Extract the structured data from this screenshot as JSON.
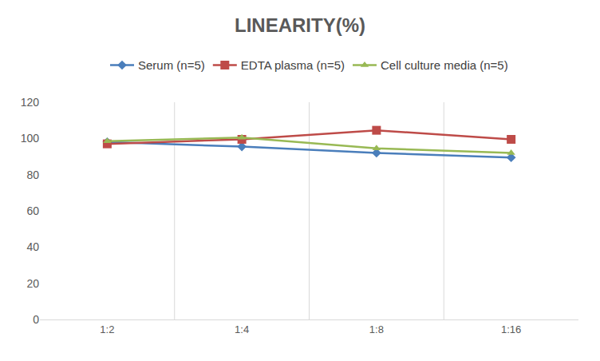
{
  "chart_data": {
    "type": "line",
    "title": "LINEARITY(%)",
    "categories": [
      "1:2",
      "1:4",
      "1:8",
      "1:16"
    ],
    "series": [
      {
        "name": "Serum (n=5)",
        "color": "#4a7ebb",
        "marker": "diamond",
        "values": [
          98,
          95.5,
          92,
          89.5
        ]
      },
      {
        "name": "EDTA plasma (n=5)",
        "color": "#be4b48",
        "marker": "square",
        "values": [
          97,
          99.5,
          104.5,
          99.5
        ]
      },
      {
        "name": "Cell culture media (n=5)",
        "color": "#98b954",
        "marker": "triangle",
        "values": [
          98.5,
          100.5,
          94.5,
          92
        ]
      }
    ],
    "ylim": [
      0,
      120
    ],
    "yticks": [
      0,
      20,
      40,
      60,
      80,
      100,
      120
    ],
    "grid": true,
    "legend": "top"
  }
}
